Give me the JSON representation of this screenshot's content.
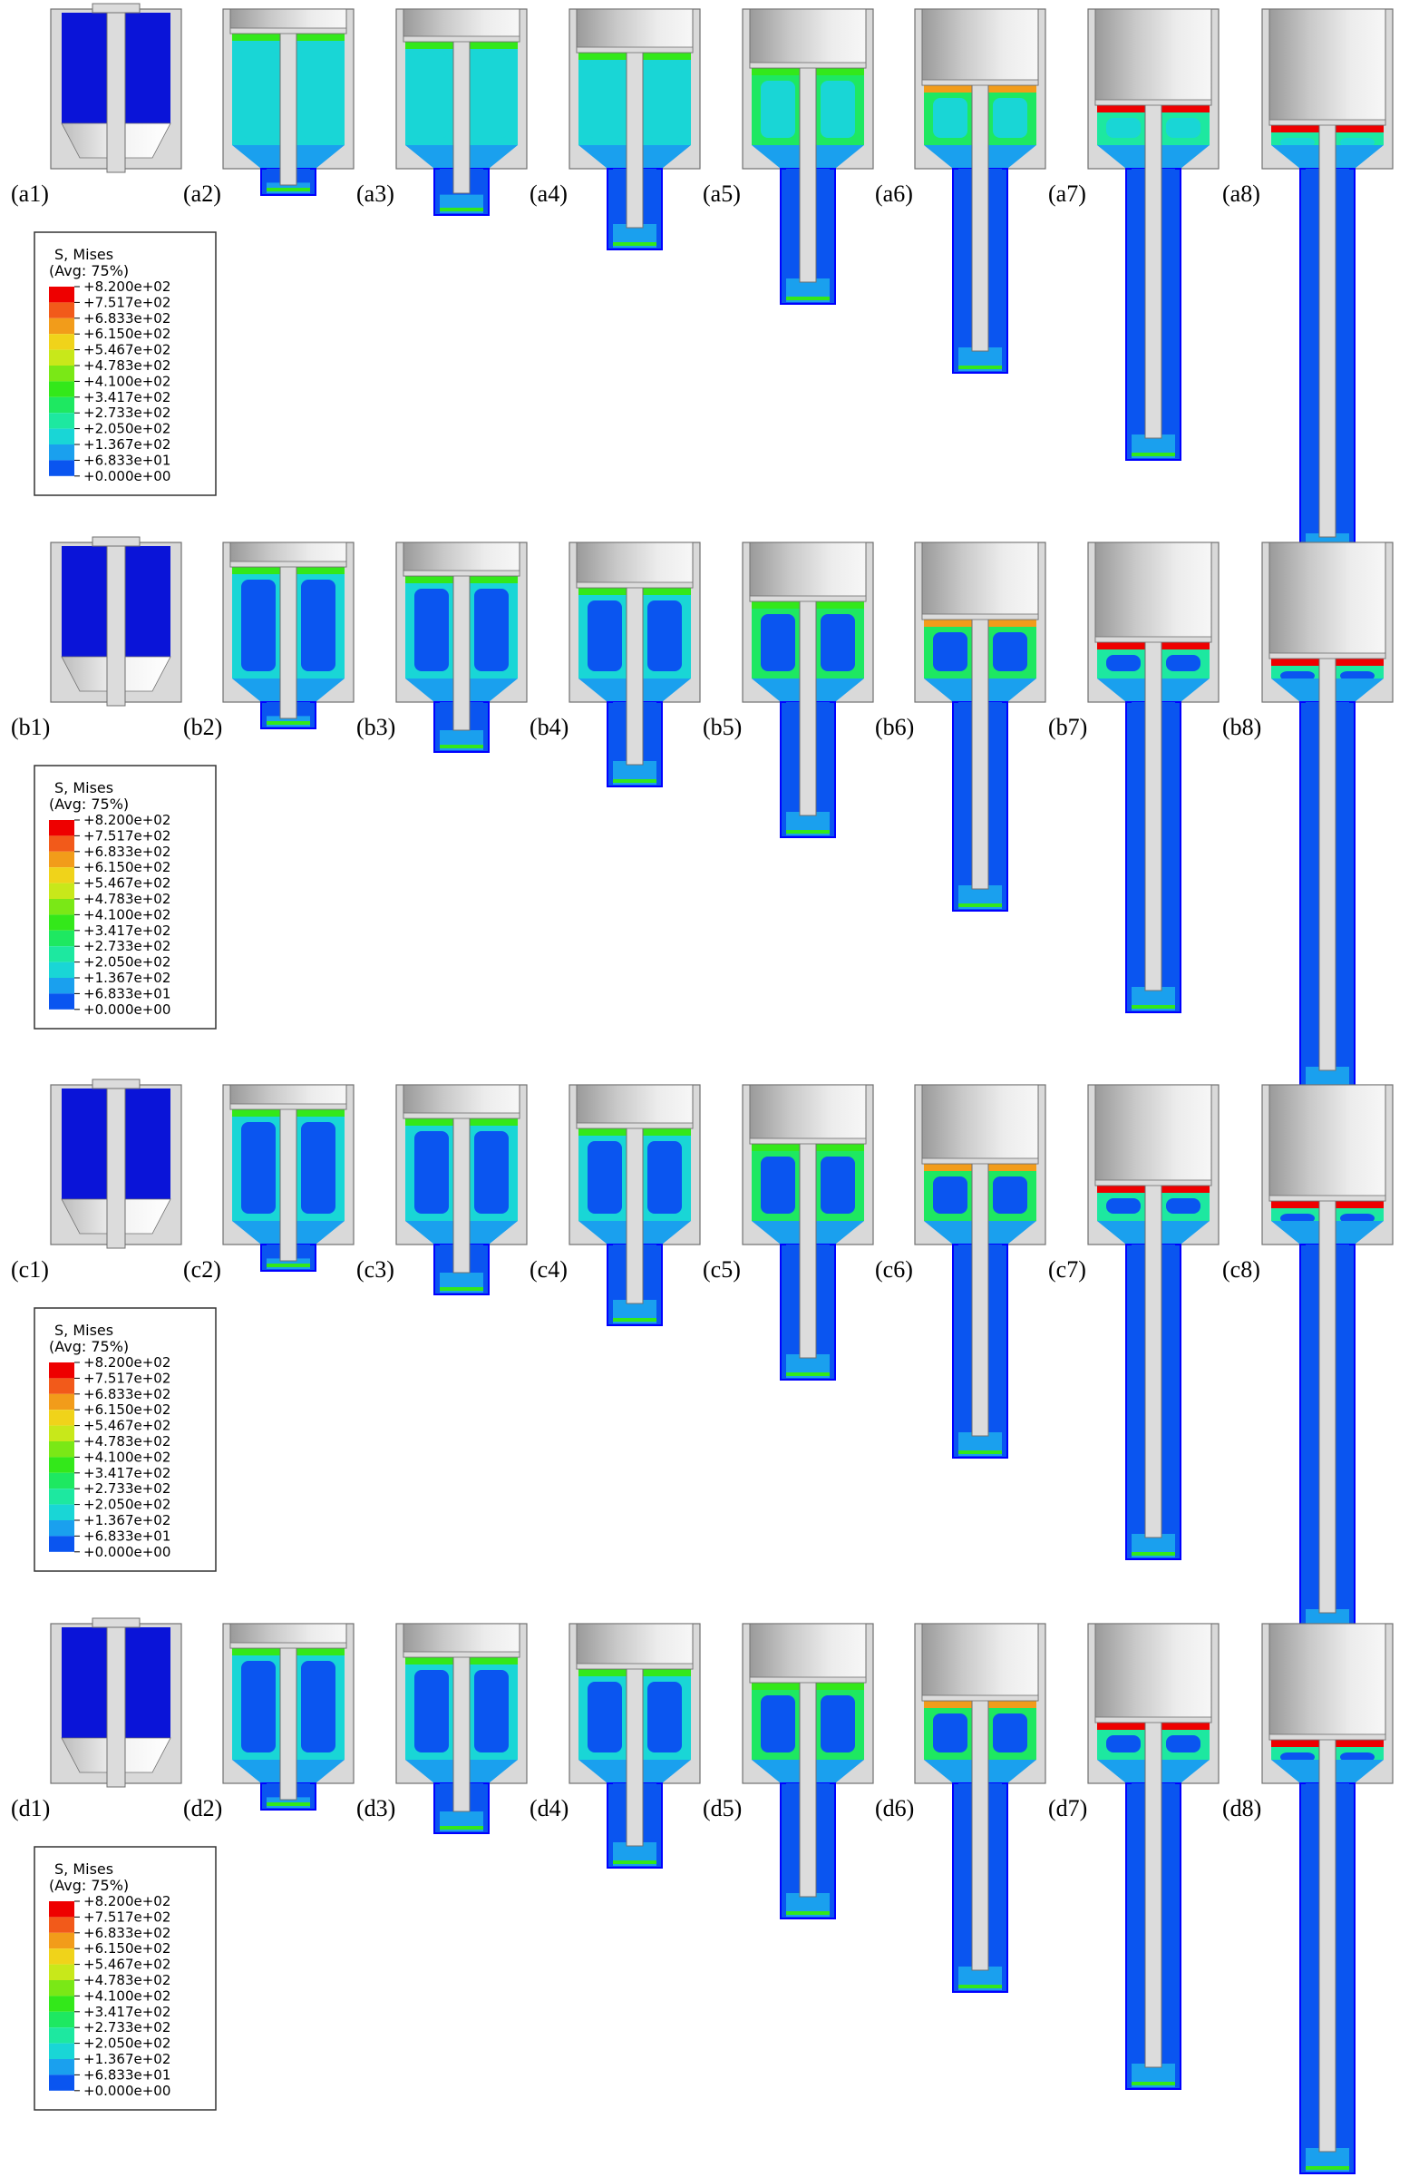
{
  "rows": [
    {
      "id": "a",
      "panels": [
        {
          "label": "(a1)",
          "stroke": 0.0
        },
        {
          "label": "(a2)",
          "stroke": 0.1
        },
        {
          "label": "(a3)",
          "stroke": 0.18
        },
        {
          "label": "(a4)",
          "stroke": 0.29
        },
        {
          "label": "(a5)",
          "stroke": 0.44
        },
        {
          "label": "(a6)",
          "stroke": 0.61
        },
        {
          "label": "(a7)",
          "stroke": 0.8
        },
        {
          "label": "(a8)",
          "stroke": 1.0
        }
      ],
      "legend": {
        "title": "S, Mises",
        "subtitle": "(Avg: 75%)",
        "levels": [
          "+8.200e+02",
          "+7.517e+02",
          "+6.833e+02",
          "+6.150e+02",
          "+5.467e+02",
          "+4.783e+02",
          "+4.100e+02",
          "+3.417e+02",
          "+2.733e+02",
          "+2.050e+02",
          "+1.367e+02",
          "+6.833e+01",
          "+0.000e+00"
        ]
      }
    },
    {
      "id": "b",
      "panels": [
        {
          "label": "(b1)",
          "stroke": 0.0
        },
        {
          "label": "(b2)",
          "stroke": 0.1
        },
        {
          "label": "(b3)",
          "stroke": 0.19
        },
        {
          "label": "(b4)",
          "stroke": 0.3
        },
        {
          "label": "(b5)",
          "stroke": 0.44
        },
        {
          "label": "(b6)",
          "stroke": 0.62
        },
        {
          "label": "(b7)",
          "stroke": 0.84
        },
        {
          "label": "(b8)",
          "stroke": 1.0
        }
      ],
      "legend": {
        "title": "S, Mises",
        "subtitle": "(Avg: 75%)",
        "levels": [
          "+8.200e+02",
          "+7.517e+02",
          "+6.833e+02",
          "+6.150e+02",
          "+5.467e+02",
          "+4.783e+02",
          "+4.100e+02",
          "+3.417e+02",
          "+2.733e+02",
          "+2.050e+02",
          "+1.367e+02",
          "+6.833e+01",
          "+0.000e+00"
        ]
      }
    },
    {
      "id": "c",
      "panels": [
        {
          "label": "(c1)",
          "stroke": 0.0
        },
        {
          "label": "(c2)",
          "stroke": 0.1
        },
        {
          "label": "(c3)",
          "stroke": 0.19
        },
        {
          "label": "(c4)",
          "stroke": 0.29
        },
        {
          "label": "(c5)",
          "stroke": 0.44
        },
        {
          "label": "(c6)",
          "stroke": 0.63
        },
        {
          "label": "(c7)",
          "stroke": 0.85
        },
        {
          "label": "(c8)",
          "stroke": 1.0
        }
      ],
      "legend": {
        "title": "S, Mises",
        "subtitle": "(Avg: 75%)",
        "levels": [
          "+8.200e+02",
          "+7.517e+02",
          "+6.833e+02",
          "+6.150e+02",
          "+5.467e+02",
          "+4.783e+02",
          "+4.100e+02",
          "+3.417e+02",
          "+2.733e+02",
          "+2.050e+02",
          "+1.367e+02",
          "+6.833e+01",
          "+0.000e+00"
        ]
      }
    },
    {
      "id": "d",
      "panels": [
        {
          "label": "(d1)",
          "stroke": 0.0
        },
        {
          "label": "(d2)",
          "stroke": 0.1
        },
        {
          "label": "(d3)",
          "stroke": 0.19
        },
        {
          "label": "(d4)",
          "stroke": 0.3
        },
        {
          "label": "(d5)",
          "stroke": 0.44
        },
        {
          "label": "(d6)",
          "stroke": 0.62
        },
        {
          "label": "(d7)",
          "stroke": 0.83
        },
        {
          "label": "(d8)",
          "stroke": 1.0
        }
      ],
      "legend": {
        "title": "S, Mises",
        "subtitle": "(Avg: 75%)",
        "levels": [
          "+8.200e+02",
          "+7.517e+02",
          "+6.833e+02",
          "+6.150e+02",
          "+5.467e+02",
          "+4.783e+02",
          "+4.100e+02",
          "+3.417e+02",
          "+2.733e+02",
          "+2.050e+02",
          "+1.367e+02",
          "+6.833e+01",
          "+0.000e+00"
        ]
      }
    }
  ],
  "colormap": [
    "#0000ff",
    "#0a55f0",
    "#1aa0ee",
    "#19d6d6",
    "#1de8a0",
    "#1ee861",
    "#33e81a",
    "#7ae816",
    "#c8e81a",
    "#f0d31a",
    "#f29c1a",
    "#f25a1a",
    "#ee0000"
  ],
  "colors": {
    "die": "#d9d9d9",
    "die_edge": "#707070",
    "punch_light": "#efefef",
    "punch_dark": "#a9a9a9",
    "mandrel": "#dcdcdc",
    "initial_billet": "#0a14d8"
  }
}
